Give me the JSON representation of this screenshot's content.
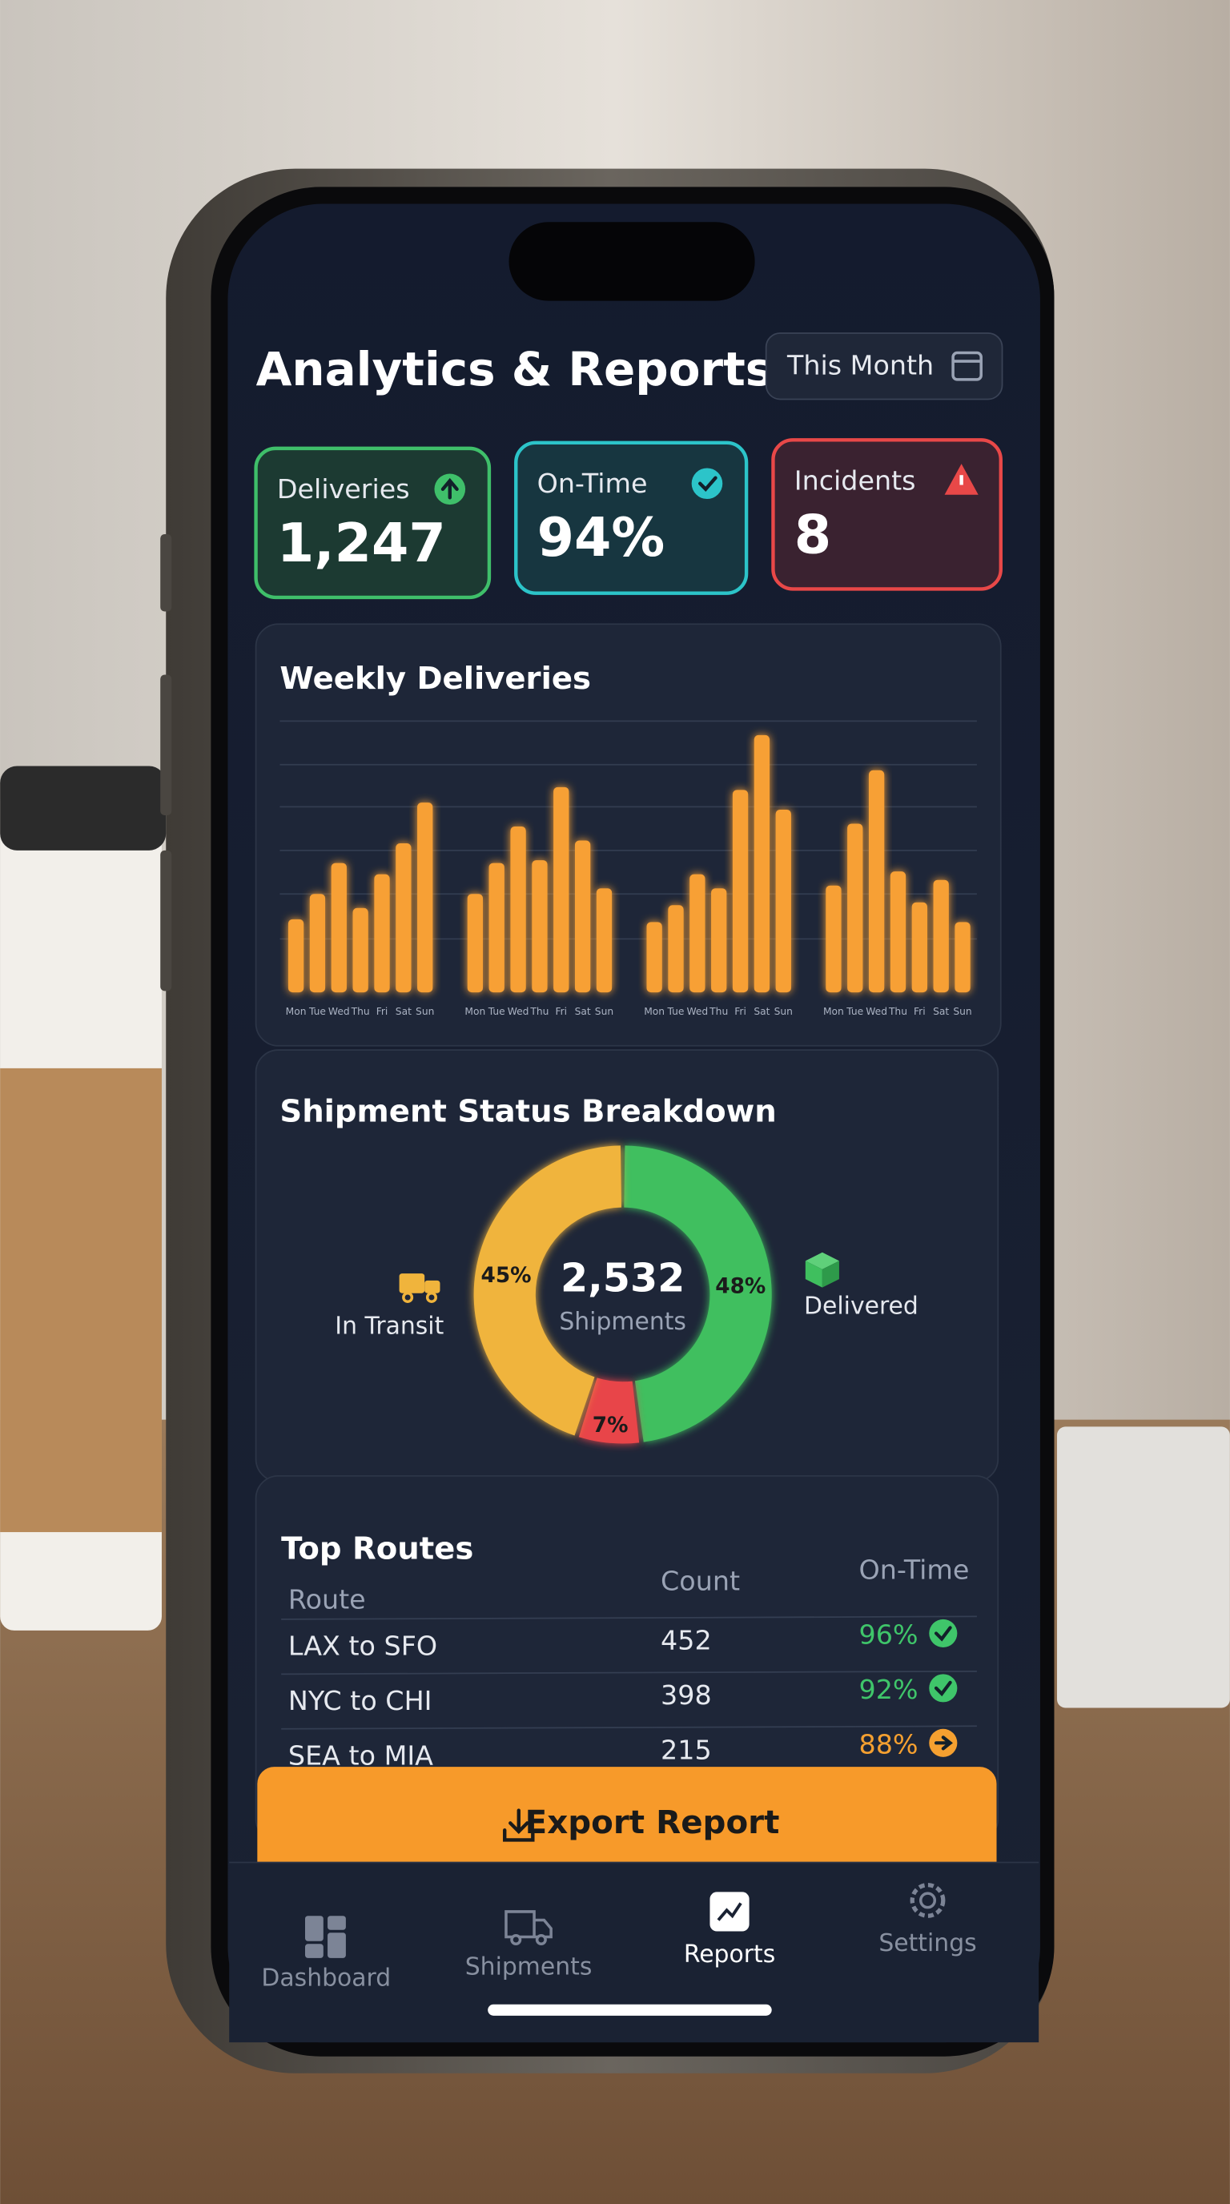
{
  "header": {
    "title": "Analytics & Reports",
    "period": "This Month"
  },
  "kpis": [
    {
      "label": "Deliveries",
      "value": "1,247",
      "color": "#3fbf6a"
    },
    {
      "label": "On-Time",
      "value": "94%",
      "color": "#2cc4c9"
    },
    {
      "label": "Incidents",
      "value": "8",
      "color": "#e84848"
    }
  ],
  "chart_data": [
    {
      "type": "bar",
      "title": "Weekly Deliveries",
      "categories": [
        "Mon",
        "Tue",
        "Wed",
        "Thu",
        "Fri",
        "Sat",
        "Sun",
        "Mon",
        "Tue",
        "Wed",
        "Thu",
        "Fri",
        "Sat",
        "Sun",
        "Mon",
        "Tue",
        "Wed",
        "Thu",
        "Fri",
        "Sat",
        "Sun",
        "Mon",
        "Tue",
        "Wed",
        "Thu",
        "Fri",
        "Sat",
        "Sun"
      ],
      "series": [
        {
          "color": "#f7a035",
          "values": [
            52,
            70,
            92,
            60,
            84,
            106,
            135,
            70,
            92,
            118,
            94,
            146,
            108,
            74,
            50,
            62,
            84,
            74,
            144,
            183,
            130,
            76,
            120,
            158,
            86,
            64,
            80,
            50
          ]
        }
      ],
      "ylim": [
        0,
        200
      ]
    },
    {
      "type": "pie",
      "title": "Shipment Status Breakdown",
      "categories": [
        "Delivered",
        null,
        "In Transit"
      ],
      "values": [
        48,
        7,
        45
      ],
      "value_labels": [
        "48%",
        "7%",
        "45%"
      ],
      "colors": [
        "#3fbf5e",
        "#e8454a",
        "#f0b43c"
      ],
      "center_value": "2,532",
      "center_label": "Shipments"
    }
  ],
  "table": {
    "title": "Top Routes",
    "columns": [
      "Route",
      "Count",
      "On-Time"
    ],
    "rows": [
      [
        "LAX to SFO",
        "452",
        "96%"
      ],
      [
        "NYC to CHI",
        "398",
        "92%"
      ],
      [
        "SEA to MIA",
        "215",
        "88%"
      ]
    ],
    "row_colors": [
      "#3fc56a",
      "#3fc56a",
      "#f5a030"
    ],
    "row_status": [
      "check",
      "check",
      "arrow"
    ]
  },
  "export_button": "Export Report",
  "tabs": [
    {
      "label": "Dashboard"
    },
    {
      "label": "Shipments"
    },
    {
      "label": "Reports",
      "active": true
    },
    {
      "label": "Settings"
    }
  ]
}
